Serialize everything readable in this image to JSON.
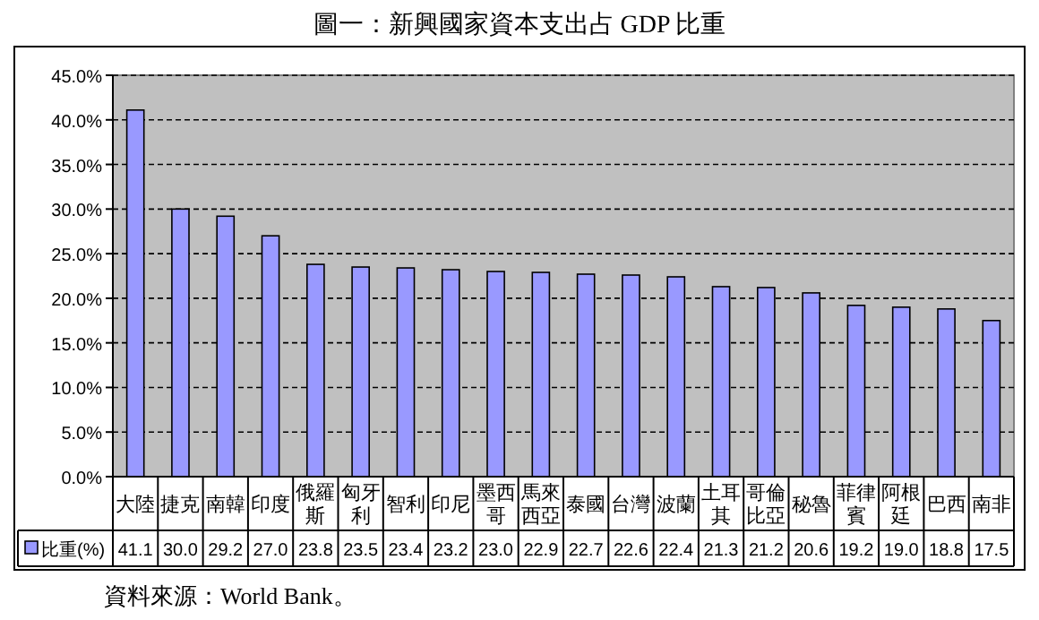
{
  "chart_data": {
    "type": "bar",
    "title": "圖一：新興國家資本支出占 GDP 比重",
    "categories": [
      "大陸",
      "捷克",
      "南韓",
      "印度",
      "俄羅斯",
      "匈牙利",
      "智利",
      "印尼",
      "墨西哥",
      "馬來西亞",
      "泰國",
      "台灣",
      "波蘭",
      "土耳其",
      "哥倫比亞",
      "秘魯",
      "菲律賓",
      "阿根廷",
      "巴西",
      "南非"
    ],
    "series": [
      {
        "name": "比重(%)",
        "color": "#9999ff",
        "values": [
          41.1,
          30.0,
          29.2,
          27.0,
          23.8,
          23.5,
          23.4,
          23.2,
          23.0,
          22.9,
          22.7,
          22.6,
          22.4,
          21.3,
          21.2,
          20.6,
          19.2,
          19.0,
          18.8,
          17.5
        ],
        "value_labels": [
          "41.1",
          "30.0",
          "29.2",
          "27.0",
          "23.8",
          "23.5",
          "23.4",
          "23.2",
          "23.0",
          "22.9",
          "22.7",
          "22.6",
          "22.4",
          "21.3",
          "21.2",
          "20.6",
          "19.2",
          "19.0",
          "18.8",
          "17.5"
        ]
      }
    ],
    "ylim": [
      0,
      45
    ],
    "yticks": [
      {
        "value": 0,
        "label": "0.0%"
      },
      {
        "value": 5,
        "label": "5.0%"
      },
      {
        "value": 10,
        "label": "10.0%"
      },
      {
        "value": 15,
        "label": "15.0%"
      },
      {
        "value": 20,
        "label": "20.0%"
      },
      {
        "value": 25,
        "label": "25.0%"
      },
      {
        "value": 30,
        "label": "30.0%"
      },
      {
        "value": 35,
        "label": "35.0%"
      },
      {
        "value": 40,
        "label": "40.0%"
      },
      {
        "value": 45,
        "label": "45.0%"
      }
    ],
    "grid": "y",
    "line_style": "dashed",
    "legend": "bottom left",
    "annotations": [
      "資料來源：World Bank。"
    ]
  }
}
